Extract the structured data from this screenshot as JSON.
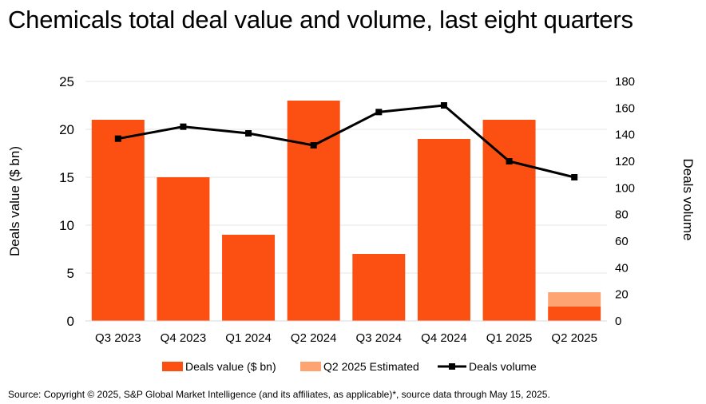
{
  "title": "Chemicals total deal value and volume, last eight quarters",
  "source": "Source: Copyright © 2025, S&P Global Market Intelligence (and its affiliates, as applicable)*, source data through May 15, 2025.",
  "colors": {
    "deal_value": "#fc4f12",
    "estimated": "#fda472",
    "volume_line": "#000000",
    "grid": "#e6e6e6"
  },
  "chart_data": {
    "type": "bar",
    "categories": [
      "Q3 2023",
      "Q4 2023",
      "Q1 2024",
      "Q2 2024",
      "Q3 2024",
      "Q4 2024",
      "Q1 2025",
      "Q2 2025"
    ],
    "series": [
      {
        "name": "Deals value ($ bn)",
        "type": "bar",
        "axis": "left",
        "values": [
          21,
          15,
          9,
          23,
          7,
          19,
          21,
          1.5
        ]
      },
      {
        "name": "Q2 2025 Estimated",
        "type": "bar-stacked",
        "axis": "left",
        "values": [
          null,
          null,
          null,
          null,
          null,
          null,
          null,
          1.5
        ]
      },
      {
        "name": "Deals volume",
        "type": "line",
        "axis": "right",
        "values": [
          137,
          146,
          141,
          132,
          157,
          162,
          120,
          108
        ]
      }
    ],
    "ylabel": "Deals value ($ bn)",
    "y2label": "Deals volume",
    "ylim": [
      0,
      25
    ],
    "y2lim": [
      0,
      180
    ],
    "yticks": [
      "0",
      "5",
      "10",
      "15",
      "20",
      "25"
    ],
    "y2ticks": [
      "0",
      "20",
      "40",
      "60",
      "80",
      "100",
      "120",
      "140",
      "160",
      "180"
    ],
    "grid": true,
    "legend_position": "bottom"
  }
}
